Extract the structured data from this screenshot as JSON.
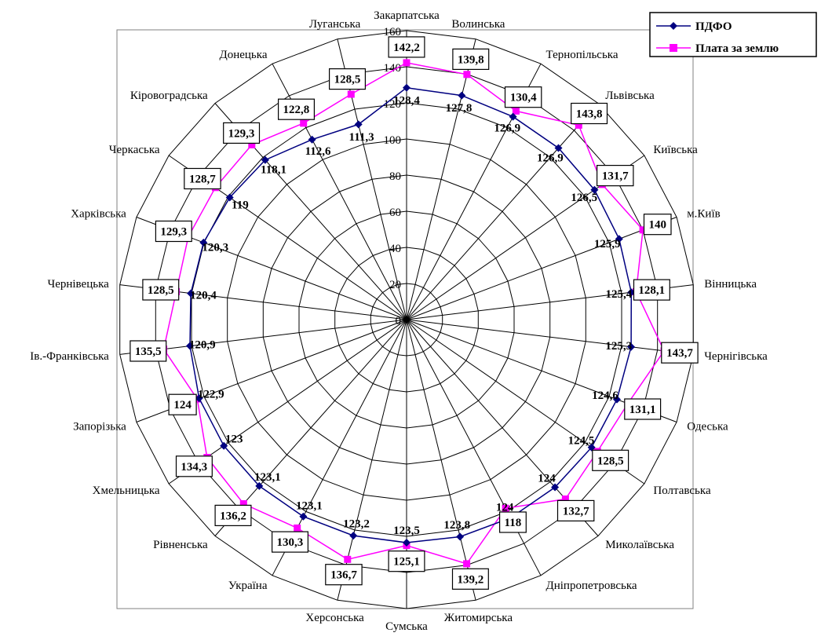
{
  "chart_data": {
    "type": "radar",
    "categories": [
      "Закарпатська",
      "Волинська",
      "Тернопільська",
      "Львівська",
      "Київська",
      "м.Київ",
      "Вінницька",
      "Чернігівська",
      "Одеська",
      "Полтавська",
      "Миколаївська",
      "Дніпропетровська",
      "Житомирська",
      "Сумська",
      "Херсонська",
      "Україна",
      "Рівненська",
      "Хмельницька",
      "Запорізька",
      "Ів.-Франківська",
      "Чернівецька",
      "Харківська",
      "Черкаська",
      "Кіровоградська",
      "Донецька",
      "Луганська"
    ],
    "series": [
      {
        "name": "ПДФО",
        "color": "#000080",
        "marker": "diamond",
        "values": [
          128.4,
          127.8,
          126.9,
          126.9,
          126.5,
          125.9,
          125.4,
          125.3,
          124.6,
          124.5,
          124,
          124,
          123.8,
          123.5,
          123.2,
          123.1,
          123.1,
          123,
          122.9,
          120.9,
          120.4,
          120.3,
          119,
          118.1,
          112.6,
          111.3
        ],
        "labels": [
          "128,4",
          "127,8",
          "126,9",
          "126,9",
          "126,5",
          "125,9",
          "125,4",
          "125,3",
          "124,6",
          "124,5",
          "124",
          "124",
          "123,8",
          "123,5",
          "123,2",
          "123,1",
          "123,1",
          "123",
          "122,9",
          "120,9",
          "120,4",
          "120,3",
          "119",
          "118,1",
          "112,6",
          "111,3"
        ]
      },
      {
        "name": "Плата за землю",
        "color": "#FF00FF",
        "marker": "square",
        "values": [
          142.2,
          139.8,
          130.4,
          143.8,
          131.7,
          140,
          128.1,
          143.7,
          131.1,
          128.5,
          132.7,
          118,
          139.2,
          125.1,
          136.7,
          130.3,
          136.2,
          134.3,
          124,
          135.5,
          128.5,
          129.3,
          128.7,
          129.3,
          122.8,
          128.5
        ],
        "labels": [
          "142,2",
          "139,8",
          "130,4",
          "143,8",
          "131,7",
          "140",
          "128,1",
          "143,7",
          "131,1",
          "128,5",
          "132,7",
          "118",
          "139,2",
          "125,1",
          "136,7",
          "130,3",
          "136,2",
          "134,3",
          "124",
          "135,5",
          "128,5",
          "129,3",
          "128,7",
          "129,3",
          "122,8",
          "128,5"
        ]
      }
    ],
    "ticks": [
      "0",
      "20",
      "40",
      "60",
      "80",
      "100",
      "120",
      "140",
      "160"
    ],
    "rlim": [
      0,
      160
    ],
    "grid": true,
    "legend_position": "top-right"
  }
}
